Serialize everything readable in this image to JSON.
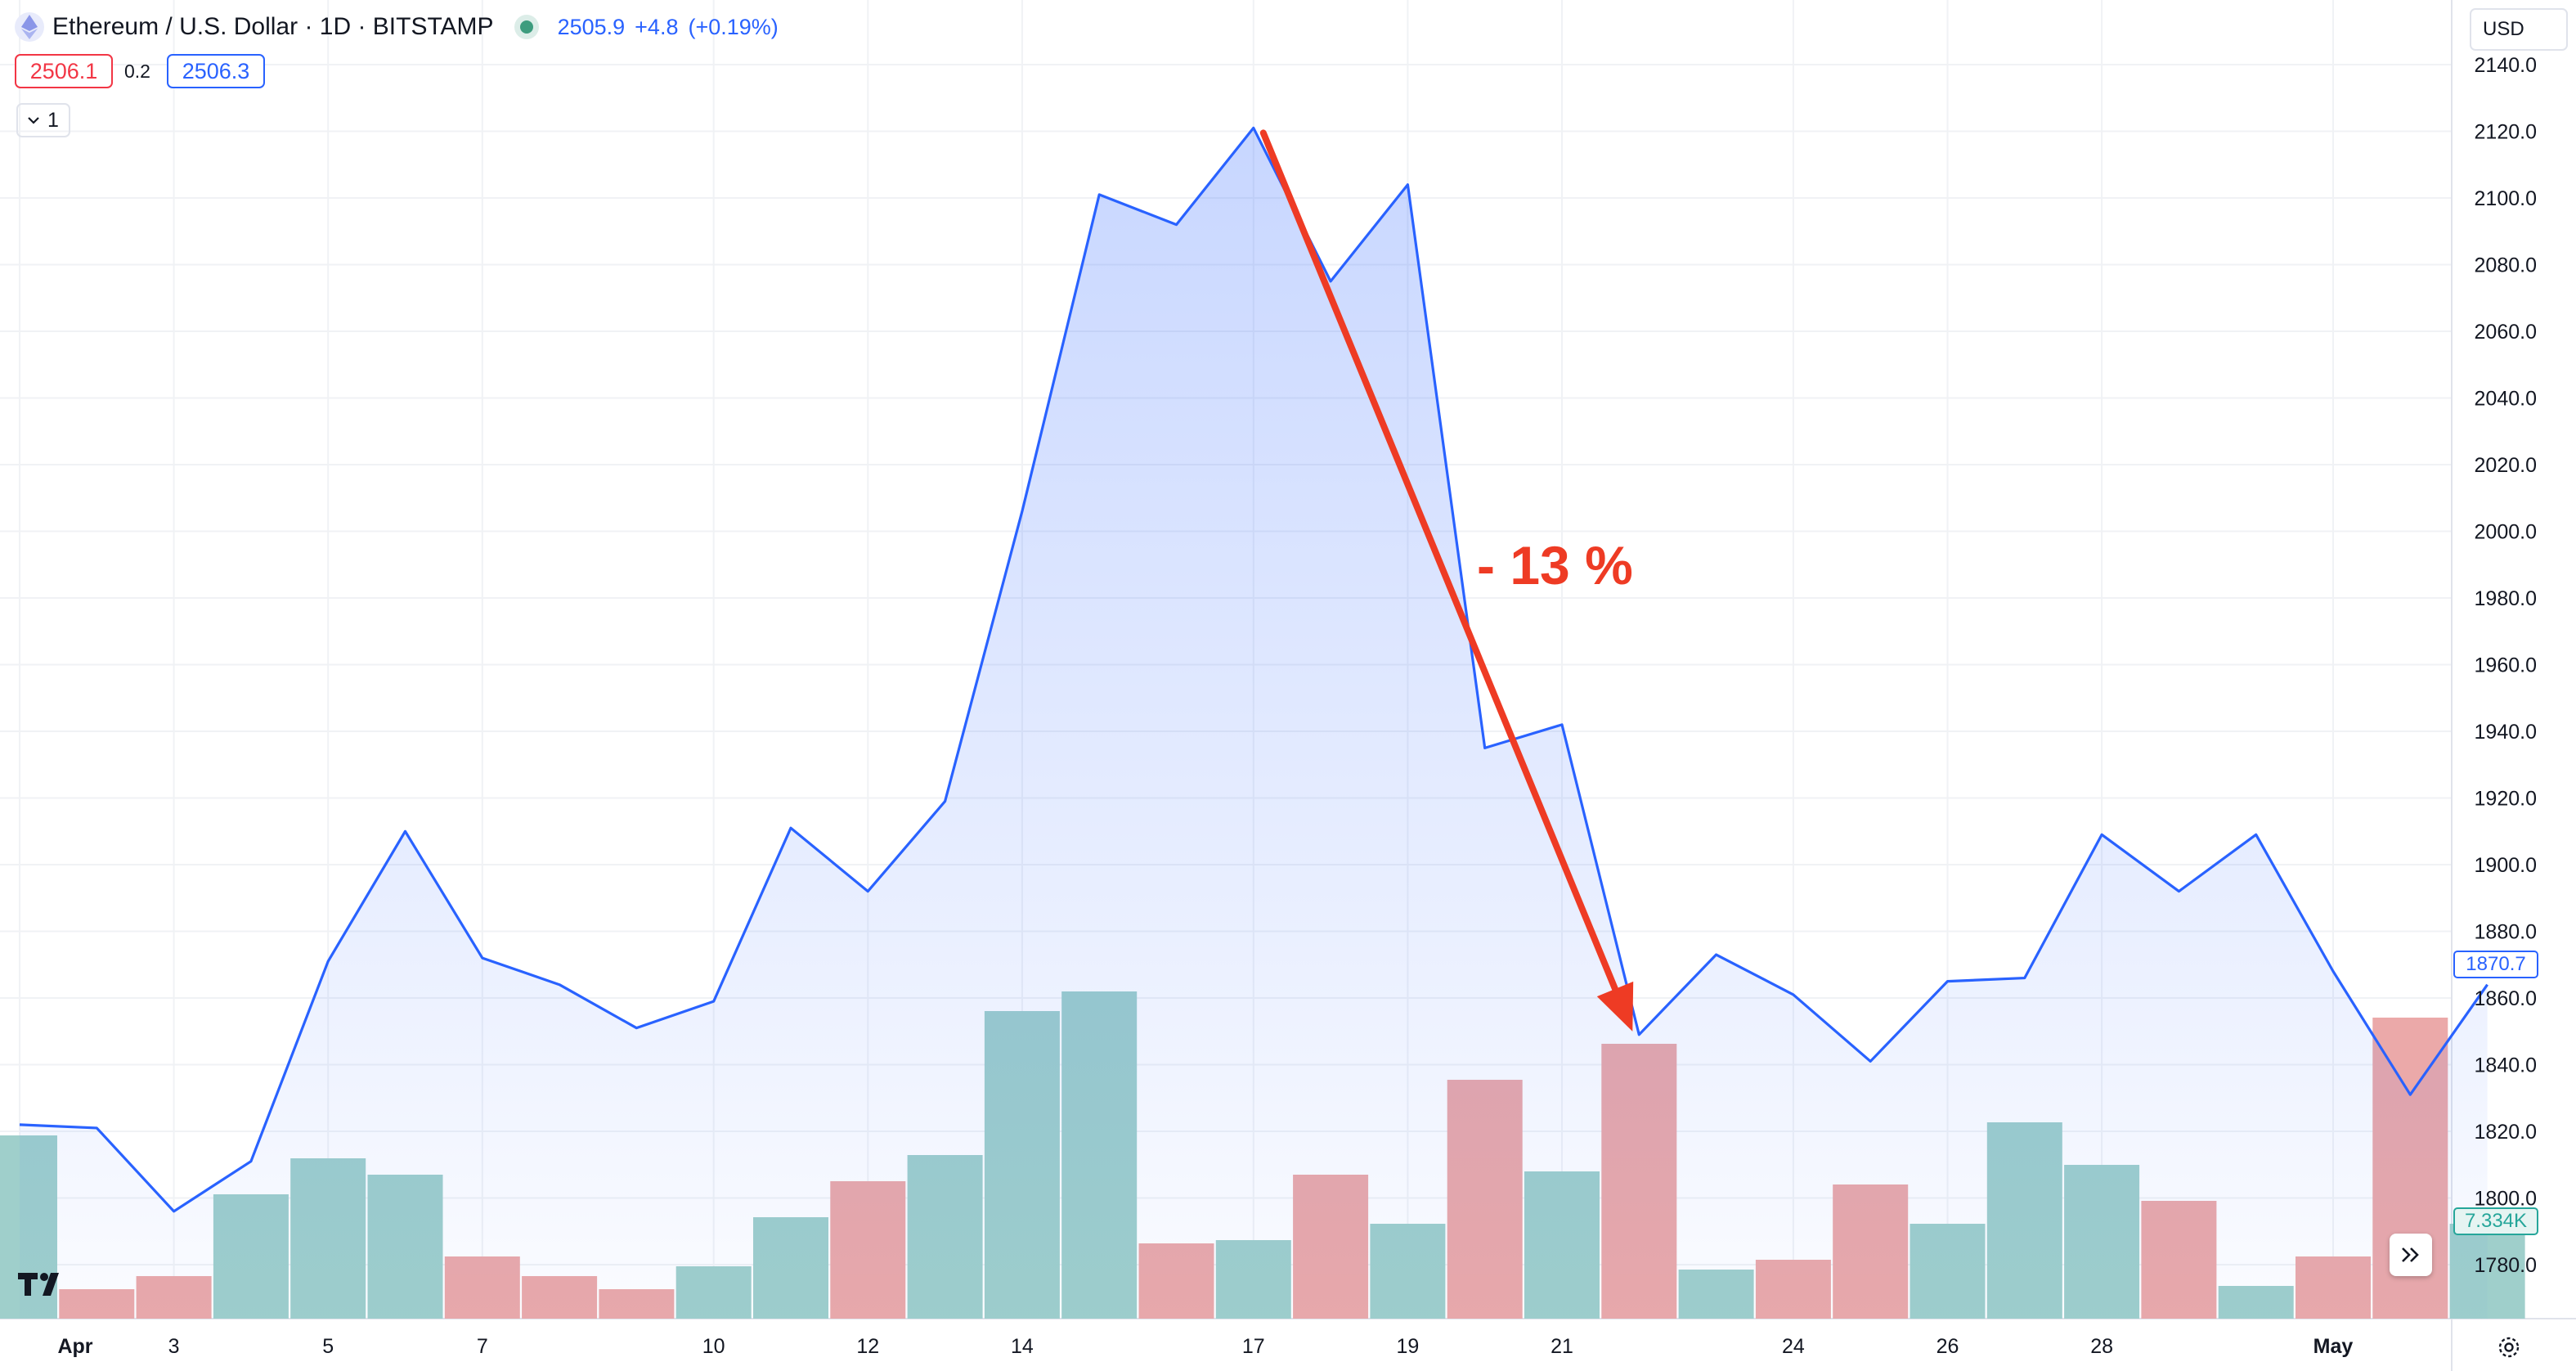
{
  "header": {
    "symbol_title": "Ethereum / U.S. Dollar · 1D · BITSTAMP",
    "last_price": "2505.9",
    "change": "+4.8",
    "change_pct": "(+0.19%)",
    "icon": "ethereum-icon",
    "status_color": "#3d9c7e"
  },
  "quotes": {
    "bid": "2506.1",
    "spread": "0.2",
    "ask": "2506.3",
    "bid_color": "#f23645",
    "ask_color": "#2962ff"
  },
  "collapse_control": {
    "icon": "chevron-down-icon",
    "value": "1"
  },
  "currency_selector": {
    "value": "USD"
  },
  "price_tag": {
    "value": "1870.7",
    "color": "#2962ff"
  },
  "volume_tag": {
    "value": "7.334K",
    "color": "#26a69a"
  },
  "icons": {
    "logo": "tradingview-logo-icon",
    "scroll": "double-chevron-right-icon",
    "settings": "gear-icon"
  },
  "chart_data": {
    "type": "area",
    "price_axis": {
      "ticks": [
        "1780.0",
        "1800.0",
        "1820.0",
        "1840.0",
        "1860.0",
        "1880.0",
        "1900.0",
        "1920.0",
        "1940.0",
        "1960.0",
        "1980.0",
        "2000.0",
        "2020.0",
        "2040.0",
        "2060.0",
        "2080.0",
        "2100.0",
        "2120.0",
        "2140.0"
      ]
    },
    "x_ticks": [
      {
        "label": "Apr",
        "day": 1,
        "bold": true
      },
      {
        "label": "3",
        "day": 3
      },
      {
        "label": "5",
        "day": 5
      },
      {
        "label": "7",
        "day": 7
      },
      {
        "label": "10",
        "day": 10
      },
      {
        "label": "12",
        "day": 12
      },
      {
        "label": "14",
        "day": 14
      },
      {
        "label": "17",
        "day": 17
      },
      {
        "label": "19",
        "day": 19
      },
      {
        "label": "21",
        "day": 21
      },
      {
        "label": "24",
        "day": 24
      },
      {
        "label": "26",
        "day": 26
      },
      {
        "label": "28",
        "day": 28
      },
      {
        "label": "May",
        "day": 31,
        "bold": true
      }
    ],
    "series": [
      {
        "values": [
          1822,
          1821,
          1796,
          1811,
          1871,
          1910,
          1872,
          1864,
          1851,
          1859,
          1911,
          1892,
          1919,
          2006,
          2101,
          2092,
          2121,
          2075,
          2104,
          1935,
          1942,
          1849,
          1873,
          1861,
          1841,
          1865,
          1866,
          1909,
          1892,
          1909,
          1868,
          1831,
          1864
        ],
        "color": "#2962ff"
      }
    ],
    "volume": {
      "values": [
        56,
        9,
        13,
        38,
        49,
        44,
        19,
        13,
        9,
        16,
        31,
        42,
        50,
        94,
        100,
        23,
        24,
        44,
        29,
        73,
        45,
        84,
        15,
        18,
        41,
        29,
        60,
        47,
        36,
        10,
        19,
        92,
        29
      ],
      "direction": [
        "up",
        "down",
        "down",
        "up",
        "up",
        "up",
        "down",
        "down",
        "down",
        "up",
        "up",
        "down",
        "up",
        "up",
        "up",
        "down",
        "up",
        "down",
        "up",
        "down",
        "up",
        "down",
        "up",
        "down",
        "down",
        "up",
        "up",
        "up",
        "down",
        "up",
        "down",
        "down",
        "up"
      ],
      "up_color": "#9fcfcb",
      "down_color": "#eba9a9"
    },
    "annotation": {
      "label": "- 13 %",
      "color": "#ee3b24",
      "from": {
        "index": 16,
        "price": 2121
      },
      "to": {
        "index": 21,
        "price": 1849
      }
    },
    "grid": true,
    "legend": "none"
  }
}
